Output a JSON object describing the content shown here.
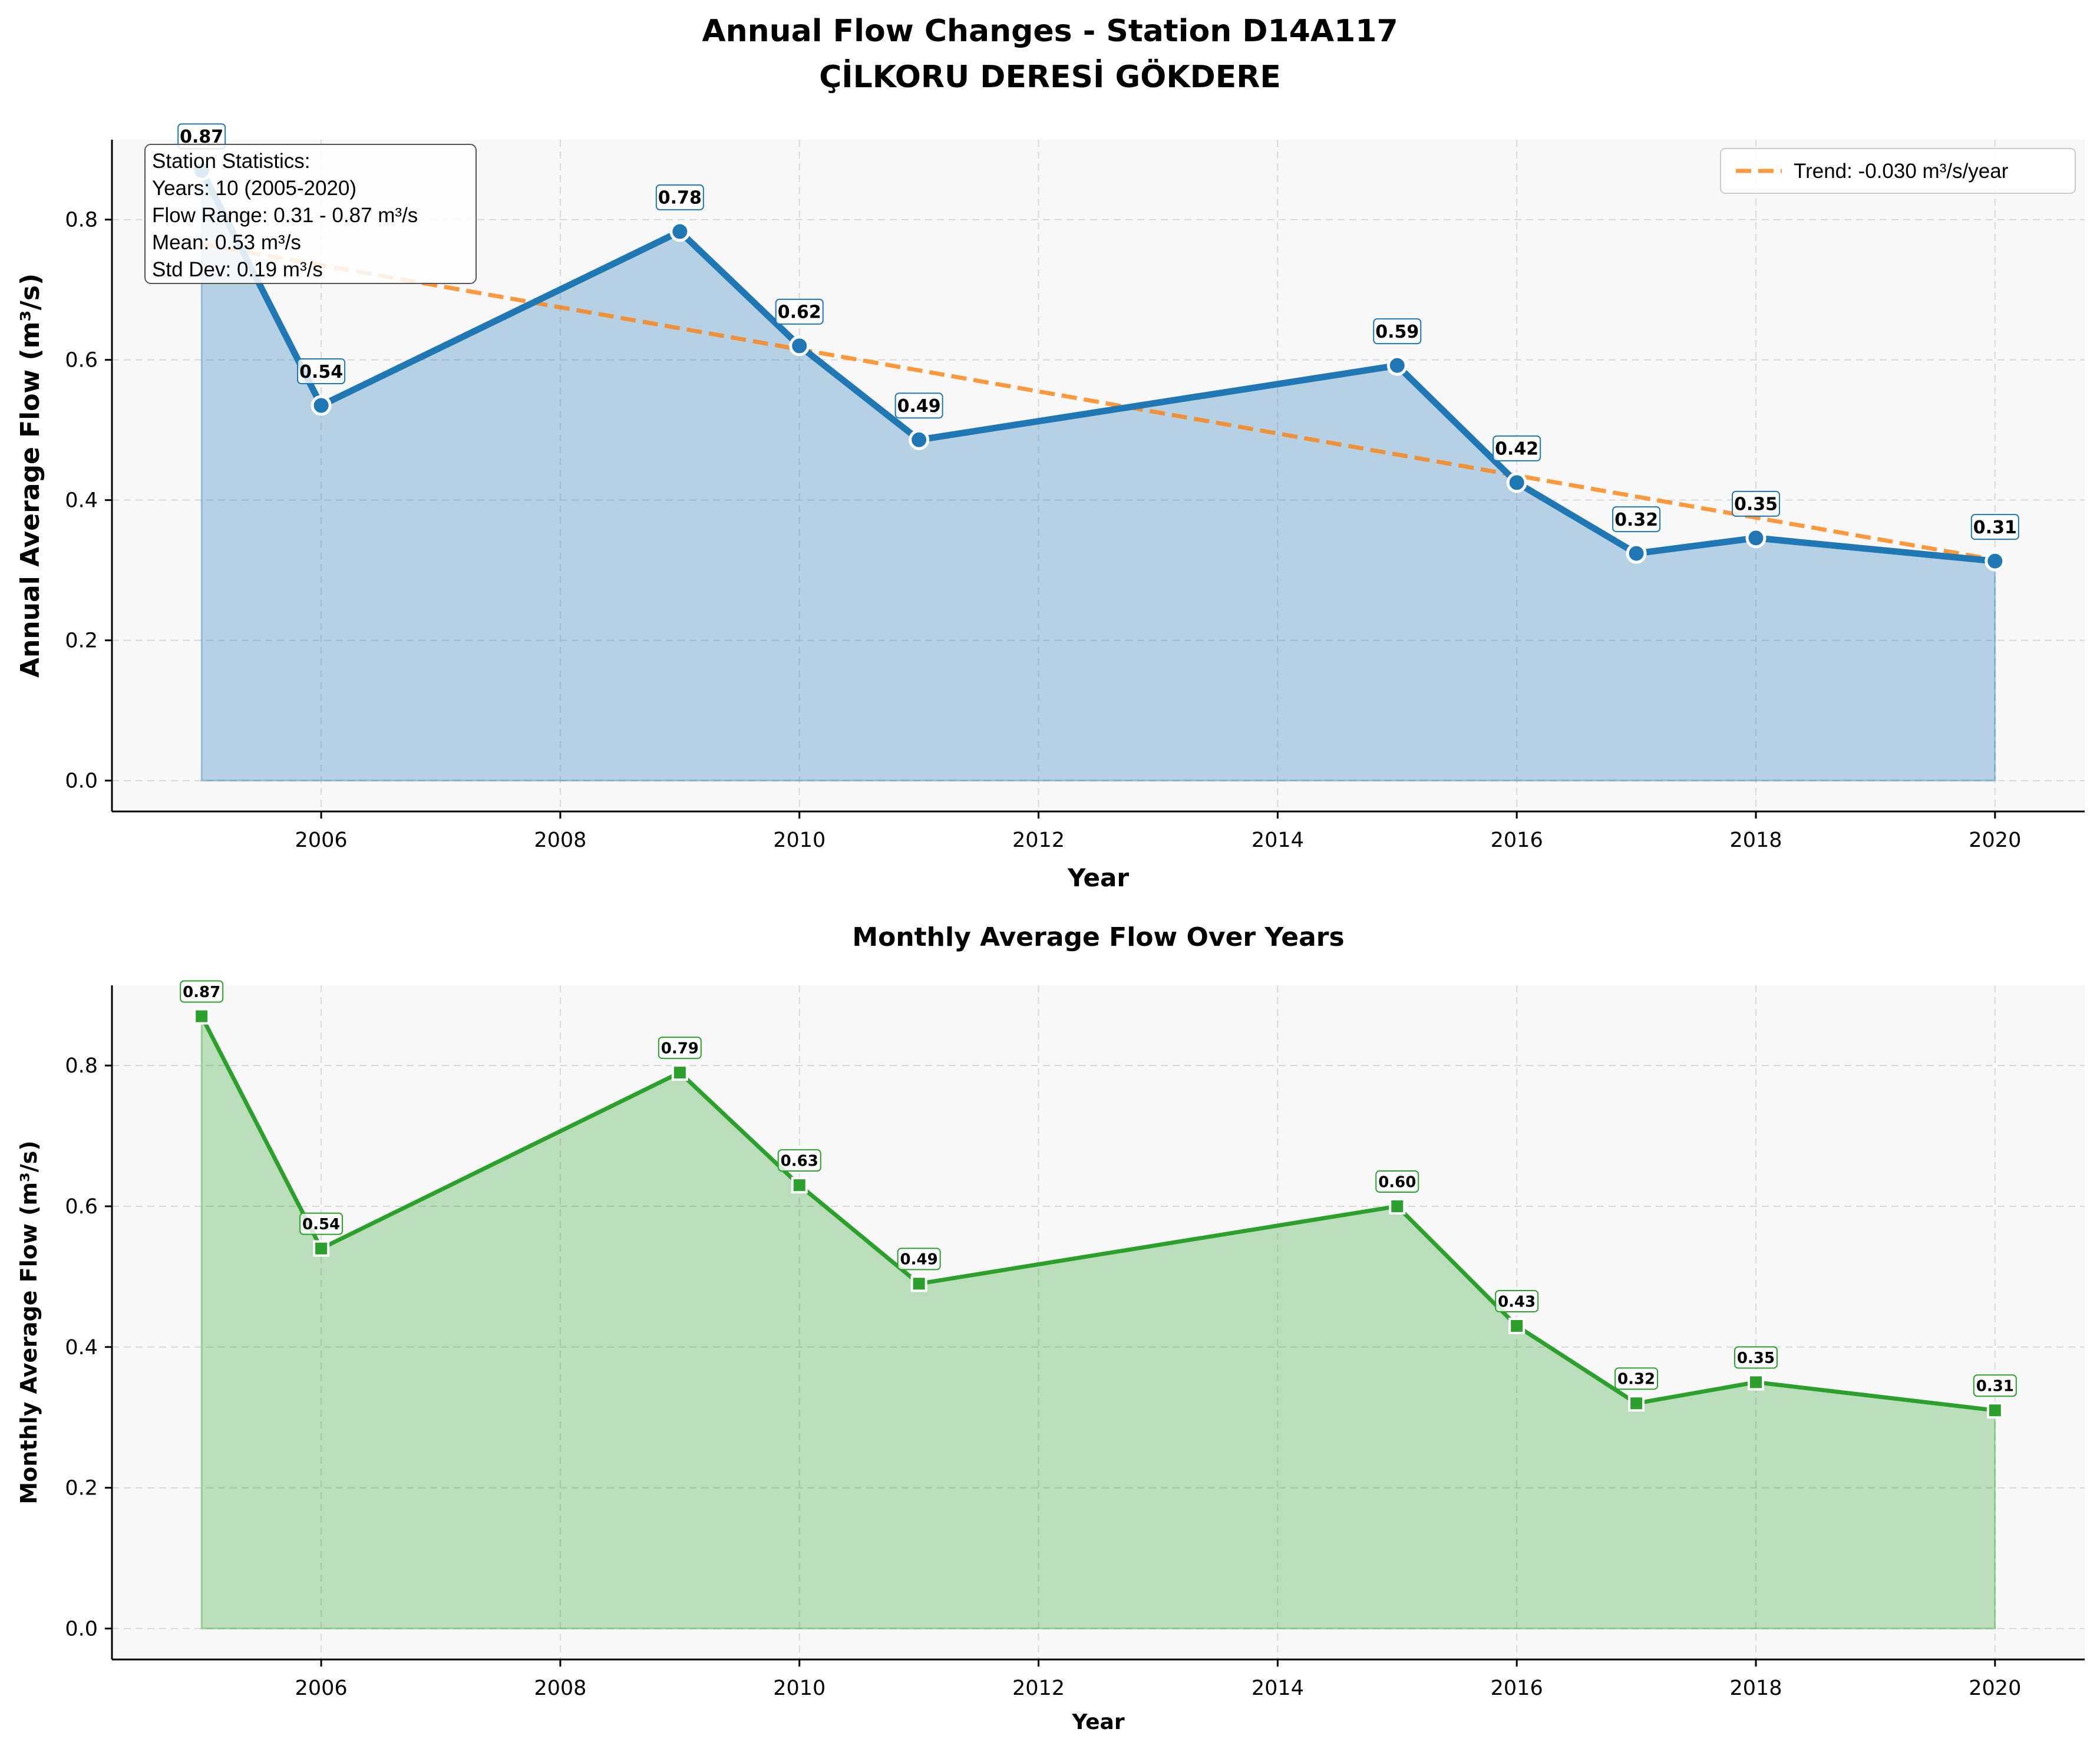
{
  "title_line1": "Annual Flow Changes - Station D14A117",
  "title_line2": "ÇİLKORU DERESİ GÖKDERE",
  "stats_box": {
    "heading": "Station Statistics:",
    "years": "Years: 10 (2005-2020)",
    "range": "Flow Range: 0.31 - 0.87 m³/s",
    "mean": "Mean: 0.53 m³/s",
    "std": "Std Dev: 0.19 m³/s"
  },
  "chart_data": [
    {
      "type": "area",
      "title": "",
      "xlabel": "Year",
      "ylabel": "Annual Average Flow (m³/s)",
      "xlim": [
        2004.25,
        2020.75
      ],
      "ylim": [
        -0.044,
        0.914
      ],
      "xticks": [
        2006,
        2008,
        2010,
        2012,
        2014,
        2016,
        2018,
        2020
      ],
      "yticks": [
        0.0,
        0.2,
        0.4,
        0.6,
        0.8
      ],
      "grid": true,
      "legend_position": "top-right",
      "x": [
        2005,
        2006,
        2009,
        2010,
        2011,
        2015,
        2016,
        2017,
        2018,
        2020
      ],
      "series": [
        {
          "values": [
            0.87,
            0.535,
            0.783,
            0.62,
            0.486,
            0.592,
            0.425,
            0.324,
            0.346,
            0.313
          ],
          "labels": [
            "0.87",
            "0.54",
            "0.78",
            "0.62",
            "0.49",
            "0.59",
            "0.42",
            "0.32",
            "0.35",
            "0.31"
          ],
          "color": "#1f77b4",
          "marker": "circle"
        }
      ],
      "trend": {
        "name": "Trend: -0.030 m³/s/year",
        "start": [
          2005,
          0.765
        ],
        "end": [
          2020,
          0.315
        ],
        "color": "#ff7f0e",
        "style": "dashed"
      }
    },
    {
      "type": "area",
      "title": "Monthly Average Flow Over Years",
      "xlabel": "Year",
      "ylabel": "Monthly Average Flow (m³/s)",
      "xlim": [
        2004.25,
        2020.75
      ],
      "ylim": [
        -0.044,
        0.914
      ],
      "xticks": [
        2006,
        2008,
        2010,
        2012,
        2014,
        2016,
        2018,
        2020
      ],
      "yticks": [
        0.0,
        0.2,
        0.4,
        0.6,
        0.8
      ],
      "grid": true,
      "x": [
        2005,
        2006,
        2009,
        2010,
        2011,
        2015,
        2016,
        2017,
        2018,
        2020
      ],
      "series": [
        {
          "values": [
            0.87,
            0.54,
            0.79,
            0.63,
            0.49,
            0.6,
            0.43,
            0.32,
            0.35,
            0.31
          ],
          "labels": [
            "0.87",
            "0.54",
            "0.79",
            "0.63",
            "0.49",
            "0.60",
            "0.43",
            "0.32",
            "0.35",
            "0.31"
          ],
          "color": "#2ca02c",
          "marker": "square"
        }
      ]
    }
  ]
}
